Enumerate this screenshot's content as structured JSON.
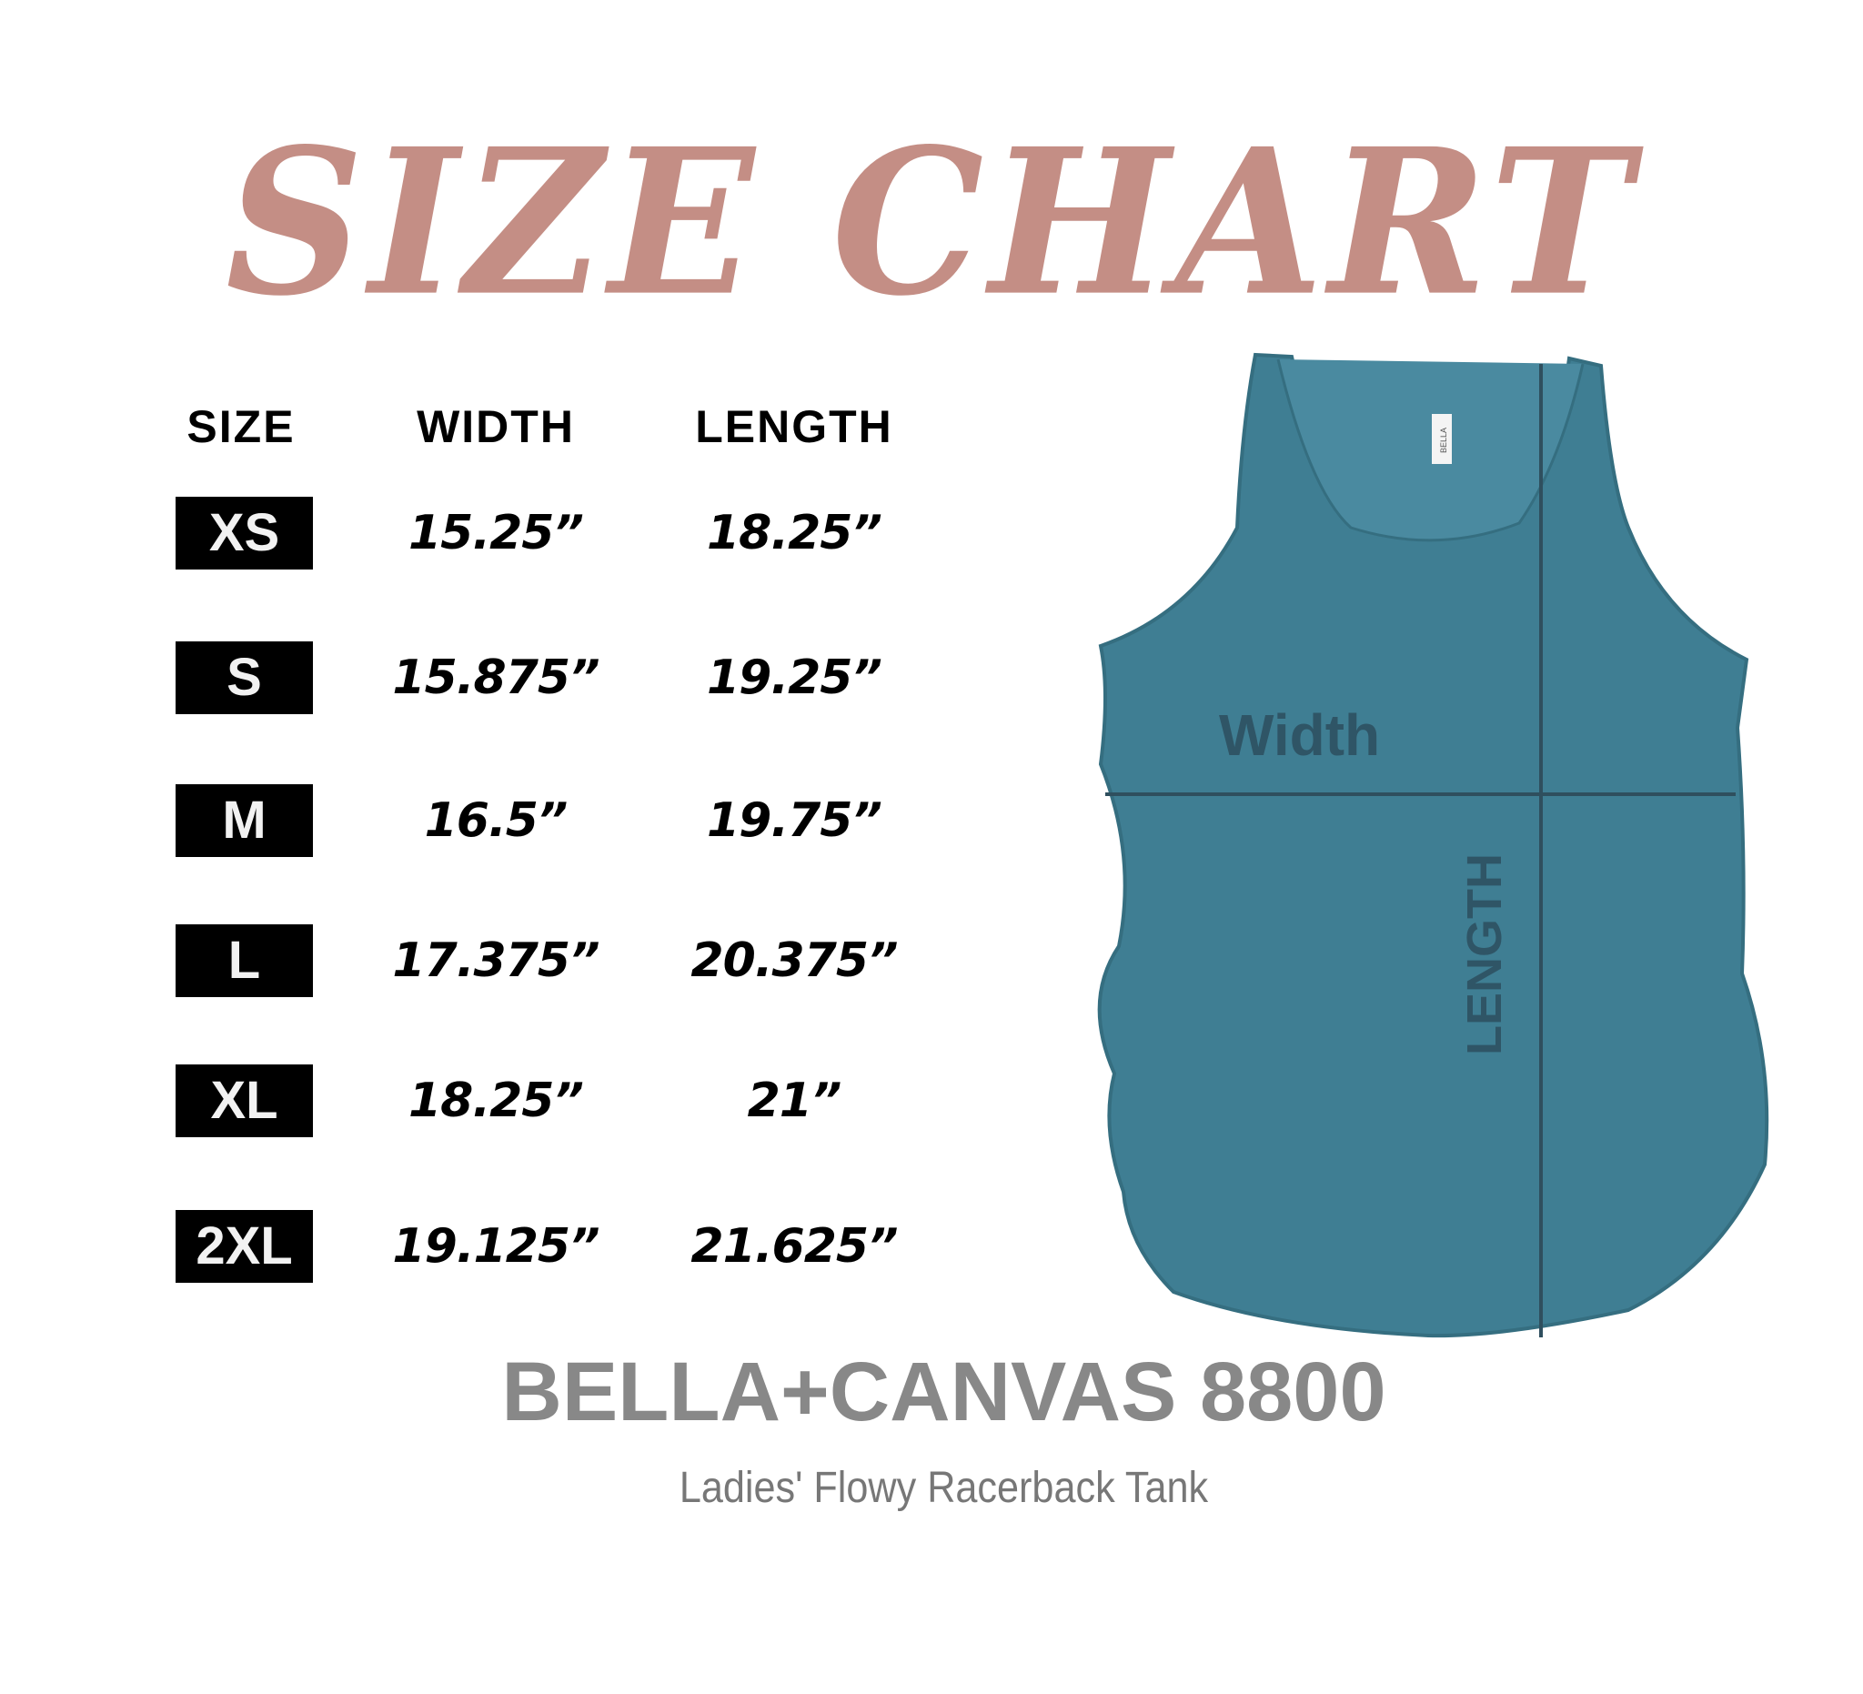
{
  "title": "SIZE CHART",
  "colors": {
    "title": "#c48e85",
    "tank": "#3f7e93",
    "badge": "#000000",
    "brand": "#888888"
  },
  "headers": {
    "size": "SIZE",
    "width": "WIDTH",
    "length": "LENGTH"
  },
  "rows": [
    {
      "size": "XS",
      "width": "15.25”",
      "length": "18.25”"
    },
    {
      "size": "S",
      "width": "15.875”",
      "length": "19.25”"
    },
    {
      "size": "M",
      "width": "16.5”",
      "length": "19.75”"
    },
    {
      "size": "L",
      "width": "17.375”",
      "length": "20.375”"
    },
    {
      "size": "XL",
      "width": "18.25”",
      "length": "21”"
    },
    {
      "size": "2XL",
      "width": "19.125”",
      "length": "21.625”"
    }
  ],
  "diagram": {
    "width_label": "Width",
    "length_label": "LENGTH",
    "tag_text": "BELLA"
  },
  "brand": "BELLA+CANVAS 8800",
  "product": "Ladies' Flowy Racerback Tank"
}
